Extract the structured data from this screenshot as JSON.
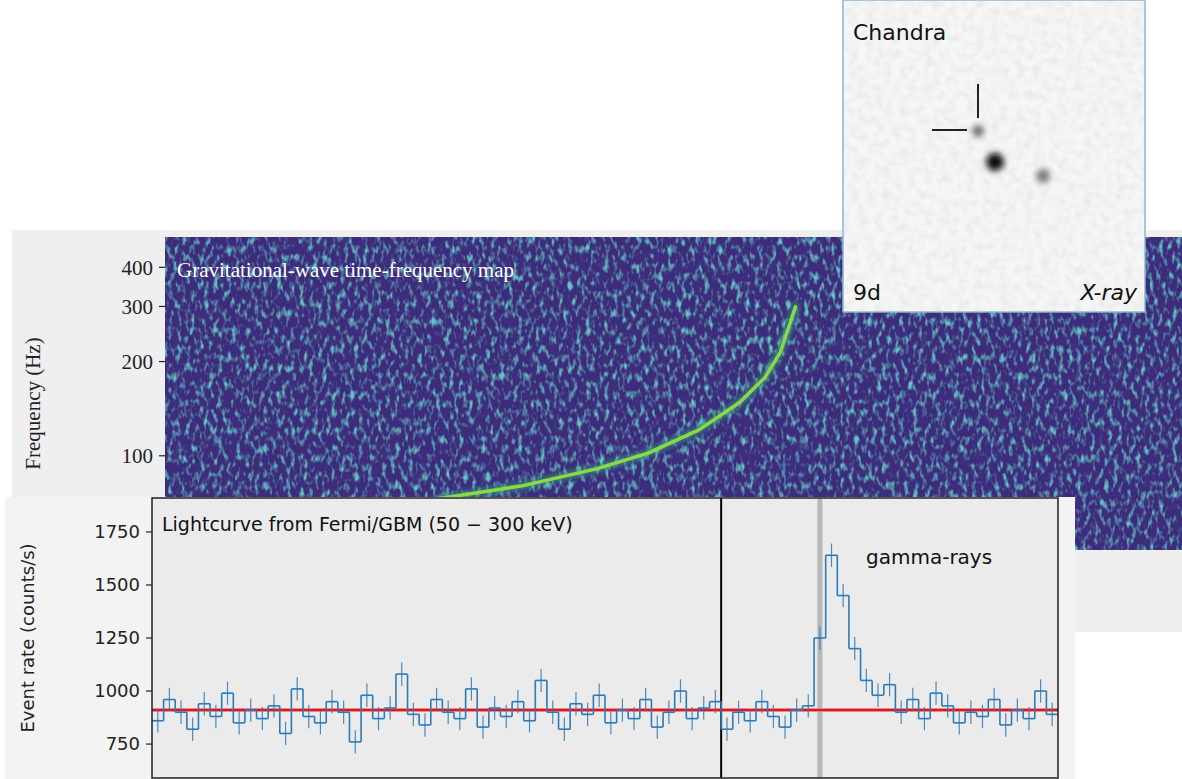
{
  "chart_data": [
    {
      "type": "line",
      "title": "Gravitational-wave time-frequency map",
      "y_label": "Frequency (Hz)",
      "log": "y",
      "x": [
        -0.7,
        -0.54,
        -0.39,
        -0.29,
        -0.19,
        -0.11,
        -0.06,
        -0.03,
        -0.01,
        0
      ],
      "series": [
        {
          "color": "#8fd744",
          "values": [
            73,
            80,
            91,
            102,
            121,
            148,
            178,
            214,
            268,
            299
          ]
        }
      ],
      "xlim": [
        -1.24,
        0.76
      ],
      "ylim": [
        50,
        500
      ],
      "yticks": [
        100,
        200,
        300,
        400
      ],
      "tick_labels": "y"
    },
    {
      "type": "histogram",
      "title": "Lightcurve from Fermi/GBM (50 − 300 keV)",
      "annotation": "gamma-rays",
      "y_label": "Event rate (counts/s)",
      "bins": [
        -9.8,
        -9.6,
        -9.4,
        -9.2,
        -9.0,
        -8.8,
        -8.6,
        -8.4,
        -8.2,
        -8.0,
        -7.8,
        -7.6,
        -7.4,
        -7.2,
        -7.0,
        -6.8,
        -6.6,
        -6.4,
        -6.2,
        -6.0,
        -5.8,
        -5.6,
        -5.4,
        -5.2,
        -5.0,
        -4.8,
        -4.6,
        -4.4,
        -4.2,
        -4.0,
        -3.8,
        -3.6,
        -3.4,
        -3.2,
        -3.0,
        -2.8,
        -2.6,
        -2.4,
        -2.2,
        -2.0,
        -1.8,
        -1.6,
        -1.4,
        -1.2,
        -1.0,
        -0.8,
        -0.6,
        -0.4,
        -0.2,
        0,
        0.2,
        0.4,
        0.6,
        0.8,
        1.0,
        1.2,
        1.4,
        1.6,
        1.8,
        2.0,
        2.2,
        2.4,
        2.6,
        2.8,
        3.0,
        3.2,
        3.4,
        3.6,
        3.8,
        4.0,
        4.2,
        4.4,
        4.6,
        4.8,
        5.0,
        5.2,
        5.4,
        5.6,
        5.8
      ],
      "values": [
        860,
        960,
        900,
        820,
        940,
        880,
        990,
        850,
        910,
        870,
        930,
        800,
        1010,
        880,
        850,
        950,
        900,
        760,
        980,
        870,
        920,
        1080,
        890,
        840,
        960,
        900,
        870,
        1010,
        830,
        920,
        880,
        950,
        860,
        1050,
        900,
        820,
        940,
        890,
        980,
        850,
        910,
        870,
        960,
        830,
        900,
        1000,
        870,
        920,
        950,
        820,
        900,
        860,
        950,
        880,
        830,
        910,
        930,
        1250,
        1640,
        1450,
        1200,
        1050,
        980,
        1030,
        900,
        960,
        870,
        990,
        930,
        850,
        900,
        880,
        960,
        840,
        910,
        870,
        1000,
        890
      ],
      "error": 55,
      "background": 910,
      "vlines": [
        0,
        1.7
      ],
      "color": "#2b7bba",
      "xlim": [
        -9.8,
        5.8
      ],
      "ylim": [
        590,
        1910
      ],
      "yticks": [
        750,
        1000,
        1250,
        1500,
        1750
      ],
      "tick_labels": "y"
    }
  ],
  "inset": {
    "title": "Chandra",
    "epoch": "9d",
    "band": "X-ray"
  }
}
